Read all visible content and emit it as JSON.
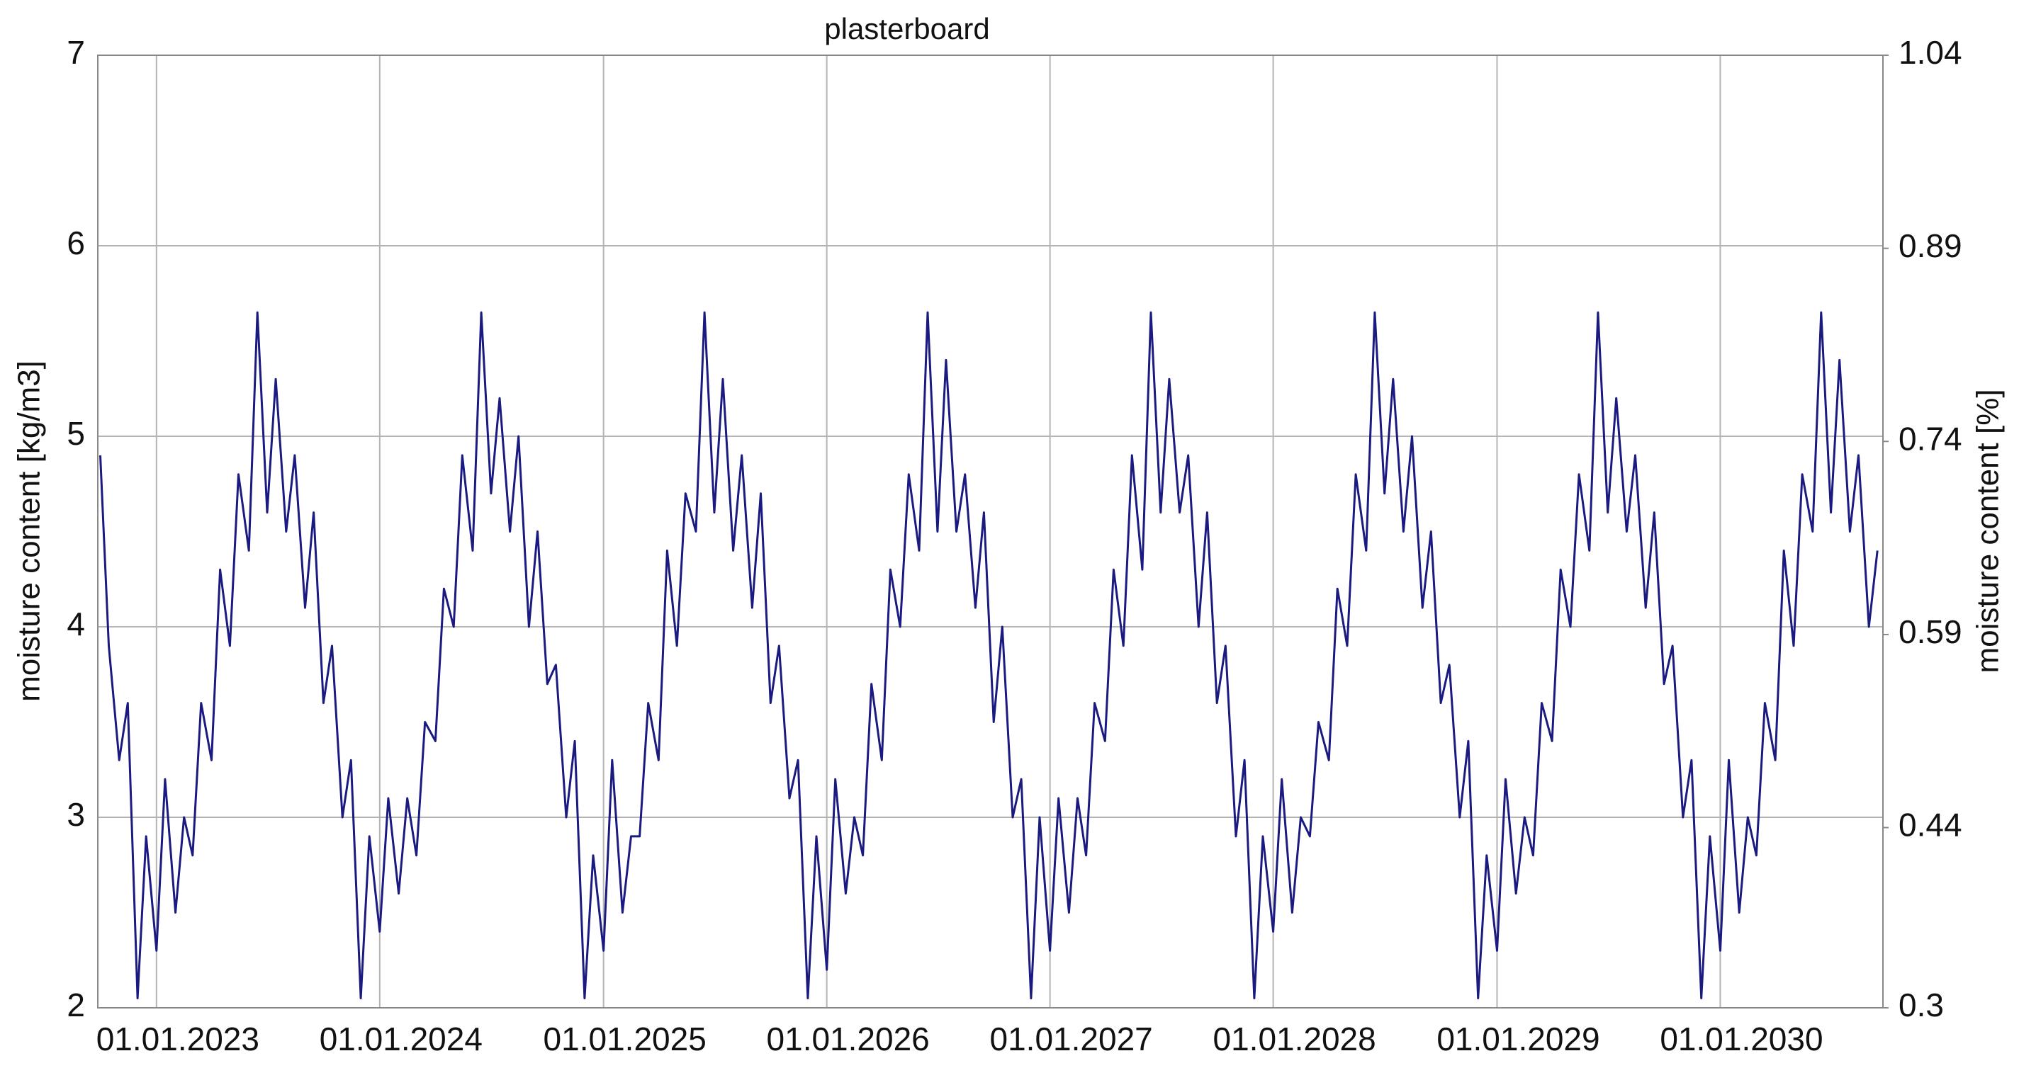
{
  "chart_data": {
    "type": "line",
    "title": "plasterboard",
    "ylabel": "moisture content [kg/m3]",
    "y2label": "moisture content [%]",
    "x": [
      "2022-10-01",
      "2022-10-15",
      "2022-11-01",
      "2022-11-15",
      "2022-12-01",
      "2022-12-15",
      "2023-01-01",
      "2023-01-15",
      "2023-02-01",
      "2023-02-15",
      "2023-03-01",
      "2023-03-15",
      "2023-04-01",
      "2023-04-15",
      "2023-05-01",
      "2023-05-15",
      "2023-06-01",
      "2023-06-15",
      "2023-07-01",
      "2023-07-15",
      "2023-08-01",
      "2023-08-15",
      "2023-09-01",
      "2023-09-15",
      "2023-10-01",
      "2023-10-15",
      "2023-11-01",
      "2023-11-15",
      "2023-12-01",
      "2023-12-15",
      "2024-01-01",
      "2024-01-15",
      "2024-02-01",
      "2024-02-15",
      "2024-03-01",
      "2024-03-15",
      "2024-04-01",
      "2024-04-15",
      "2024-05-01",
      "2024-05-15",
      "2024-06-01",
      "2024-06-15",
      "2024-07-01",
      "2024-07-15",
      "2024-08-01",
      "2024-08-15",
      "2024-09-01",
      "2024-09-15",
      "2024-10-01",
      "2024-10-15",
      "2024-11-01",
      "2024-11-15",
      "2024-12-01",
      "2024-12-15",
      "2025-01-01",
      "2025-01-15",
      "2025-02-01",
      "2025-02-15",
      "2025-03-01",
      "2025-03-15",
      "2025-04-01",
      "2025-04-15",
      "2025-05-01",
      "2025-05-15",
      "2025-06-01",
      "2025-06-15",
      "2025-07-01",
      "2025-07-15",
      "2025-08-01",
      "2025-08-15",
      "2025-09-01",
      "2025-09-15",
      "2025-10-01",
      "2025-10-15",
      "2025-11-01",
      "2025-11-15",
      "2025-12-01",
      "2025-12-15",
      "2026-01-01",
      "2026-01-15",
      "2026-02-01",
      "2026-02-15",
      "2026-03-01",
      "2026-03-15",
      "2026-04-01",
      "2026-04-15",
      "2026-05-01",
      "2026-05-15",
      "2026-06-01",
      "2026-06-15",
      "2026-07-01",
      "2026-07-15",
      "2026-08-01",
      "2026-08-15",
      "2026-09-01",
      "2026-09-15",
      "2026-10-01",
      "2026-10-15",
      "2026-11-01",
      "2026-11-15",
      "2026-12-01",
      "2026-12-15",
      "2027-01-01",
      "2027-01-15",
      "2027-02-01",
      "2027-02-15",
      "2027-03-01",
      "2027-03-15",
      "2027-04-01",
      "2027-04-15",
      "2027-05-01",
      "2027-05-15",
      "2027-06-01",
      "2027-06-15",
      "2027-07-01",
      "2027-07-15",
      "2027-08-01",
      "2027-08-15",
      "2027-09-01",
      "2027-09-15",
      "2027-10-01",
      "2027-10-15",
      "2027-11-01",
      "2027-11-15",
      "2027-12-01",
      "2027-12-15",
      "2028-01-01",
      "2028-01-15",
      "2028-02-01",
      "2028-02-15",
      "2028-03-01",
      "2028-03-15",
      "2028-04-01",
      "2028-04-15",
      "2028-05-01",
      "2028-05-15",
      "2028-06-01",
      "2028-06-15",
      "2028-07-01",
      "2028-07-15",
      "2028-08-01",
      "2028-08-15",
      "2028-09-01",
      "2028-09-15",
      "2028-10-01",
      "2028-10-15",
      "2028-11-01",
      "2028-11-15",
      "2028-12-01",
      "2028-12-15",
      "2029-01-01",
      "2029-01-15",
      "2029-02-01",
      "2029-02-15",
      "2029-03-01",
      "2029-03-15",
      "2029-04-01",
      "2029-04-15",
      "2029-05-01",
      "2029-05-15",
      "2029-06-01",
      "2029-06-15",
      "2029-07-01",
      "2029-07-15",
      "2029-08-01",
      "2029-08-15",
      "2029-09-01",
      "2029-09-15",
      "2029-10-01",
      "2029-10-15",
      "2029-11-01",
      "2029-11-15",
      "2029-12-01",
      "2029-12-15",
      "2030-01-01",
      "2030-01-15",
      "2030-02-01",
      "2030-02-15",
      "2030-03-01",
      "2030-03-15",
      "2030-04-01",
      "2030-04-15",
      "2030-05-01",
      "2030-05-15",
      "2030-06-01",
      "2030-06-15",
      "2030-07-01",
      "2030-07-15",
      "2030-08-01",
      "2030-08-15",
      "2030-09-01",
      "2030-09-15"
    ],
    "series": [
      {
        "color": "#1a1a80",
        "values": [
          4.9,
          3.9,
          3.3,
          3.6,
          2.05,
          2.9,
          2.3,
          3.2,
          2.5,
          3.0,
          2.8,
          3.6,
          3.3,
          4.3,
          3.9,
          4.8,
          4.4,
          5.65,
          4.6,
          5.3,
          4.5,
          4.9,
          4.1,
          4.6,
          3.6,
          3.9,
          3.0,
          3.3,
          2.05,
          2.9,
          2.4,
          3.1,
          2.6,
          3.1,
          2.8,
          3.5,
          3.4,
          4.2,
          4.0,
          4.9,
          4.4,
          5.65,
          4.7,
          5.2,
          4.5,
          5.0,
          4.0,
          4.5,
          3.7,
          3.8,
          3.0,
          3.4,
          2.05,
          2.8,
          2.3,
          3.3,
          2.5,
          2.9,
          2.9,
          3.6,
          3.3,
          4.4,
          3.9,
          4.7,
          4.5,
          5.65,
          4.6,
          5.3,
          4.4,
          4.9,
          4.1,
          4.7,
          3.6,
          3.9,
          3.1,
          3.3,
          2.05,
          2.9,
          2.2,
          3.2,
          2.6,
          3.0,
          2.8,
          3.7,
          3.3,
          4.3,
          4.0,
          4.8,
          4.4,
          5.65,
          4.5,
          5.4,
          4.5,
          4.8,
          4.1,
          4.6,
          3.5,
          4.0,
          3.0,
          3.2,
          2.05,
          3.0,
          2.3,
          3.1,
          2.5,
          3.1,
          2.8,
          3.6,
          3.4,
          4.3,
          3.9,
          4.9,
          4.3,
          5.65,
          4.6,
          5.3,
          4.6,
          4.9,
          4.0,
          4.6,
          3.6,
          3.9,
          2.9,
          3.3,
          2.05,
          2.9,
          2.4,
          3.2,
          2.5,
          3.0,
          2.9,
          3.5,
          3.3,
          4.2,
          3.9,
          4.8,
          4.4,
          5.65,
          4.7,
          5.3,
          4.5,
          5.0,
          4.1,
          4.5,
          3.6,
          3.8,
          3.0,
          3.4,
          2.05,
          2.8,
          2.3,
          3.2,
          2.6,
          3.0,
          2.8,
          3.6,
          3.4,
          4.3,
          4.0,
          4.8,
          4.4,
          5.65,
          4.6,
          5.2,
          4.5,
          4.9,
          4.1,
          4.6,
          3.7,
          3.9,
          3.0,
          3.3,
          2.05,
          2.9,
          2.3,
          3.3,
          2.5,
          3.0,
          2.8,
          3.6,
          3.3,
          4.4,
          3.9,
          4.8,
          4.5,
          5.65,
          4.6,
          5.4,
          4.5,
          4.9,
          4.0,
          4.4
        ]
      }
    ],
    "xlim": [
      "2022-09-27",
      "2030-09-24"
    ],
    "xticks": [
      {
        "value": "2023-01-01",
        "label": "01.01.2023"
      },
      {
        "value": "2024-01-01",
        "label": "01.01.2024"
      },
      {
        "value": "2025-01-01",
        "label": "01.01.2025"
      },
      {
        "value": "2026-01-01",
        "label": "01.01.2026"
      },
      {
        "value": "2027-01-01",
        "label": "01.01.2027"
      },
      {
        "value": "2028-01-01",
        "label": "01.01.2028"
      },
      {
        "value": "2029-01-01",
        "label": "01.01.2029"
      },
      {
        "value": "2030-01-01",
        "label": "01.01.2030"
      }
    ],
    "ylim": [
      2,
      7
    ],
    "yticks": [
      2,
      3,
      4,
      5,
      6,
      7
    ],
    "y2lim": [
      0.3,
      1.04
    ],
    "y2ticks": [
      0.3,
      0.44,
      0.59,
      0.74,
      0.89,
      1.04
    ],
    "grid": true
  }
}
